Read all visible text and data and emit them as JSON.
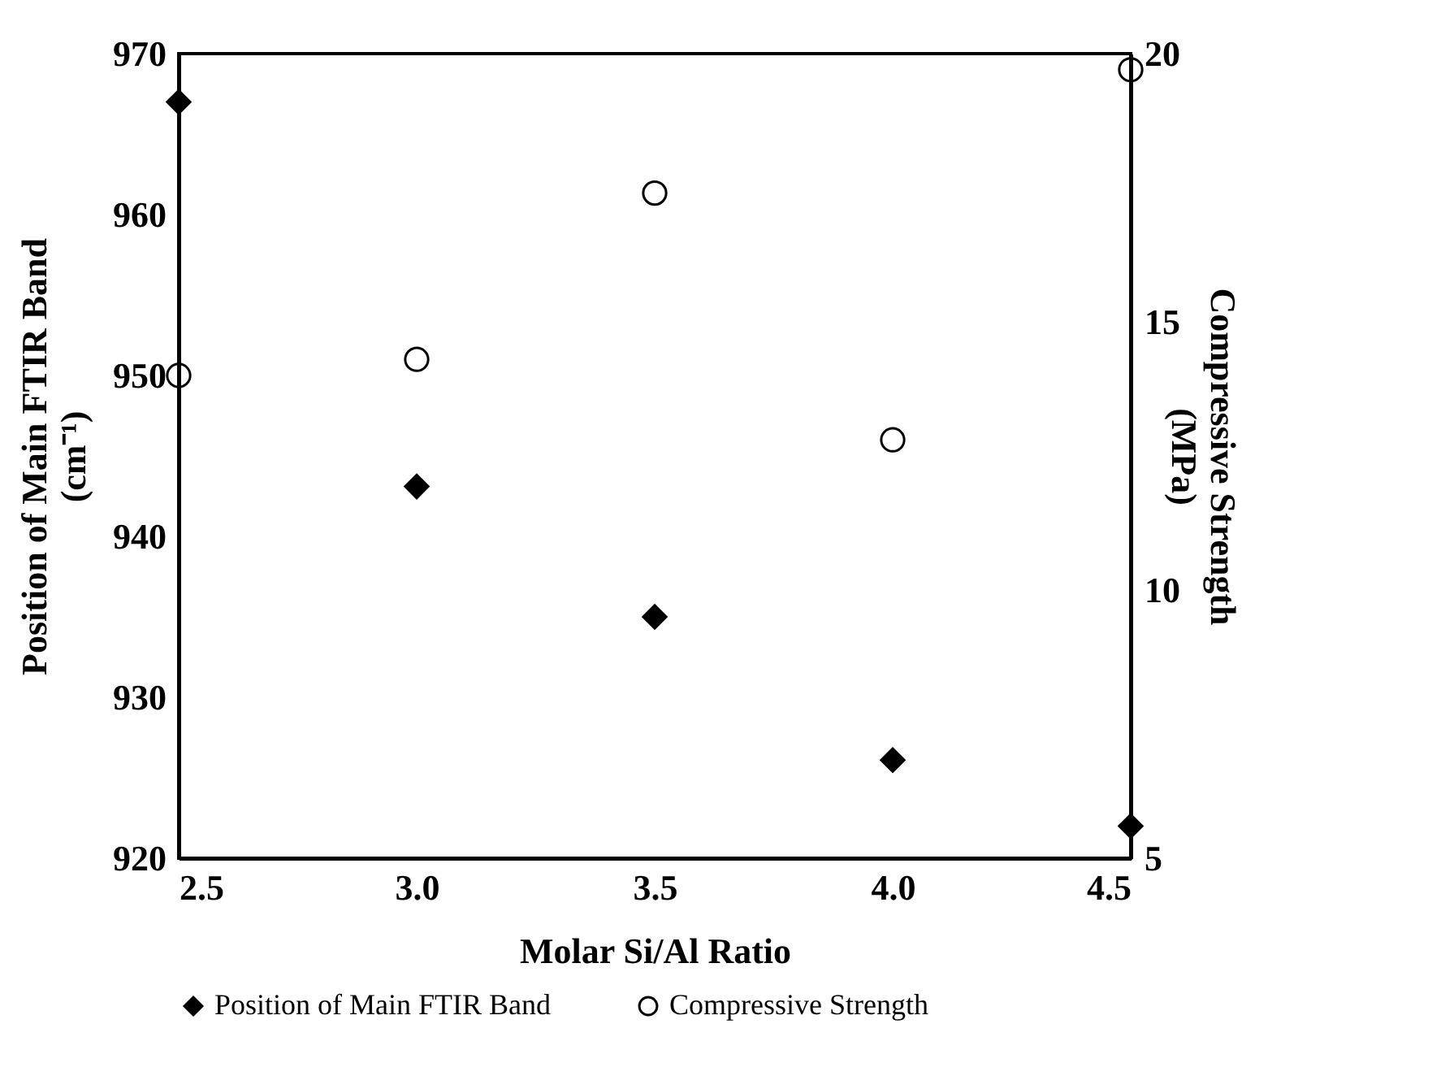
{
  "chart_data": {
    "type": "scatter",
    "xlabel": "Molar Si/Al Ratio",
    "ylabel": "Position of Main FTIR Band\n(cm⁻¹)",
    "y2label": "Compressive Strength\n(MPa)",
    "x": [
      2.5,
      3.0,
      3.5,
      4.0,
      4.5
    ],
    "series": [
      {
        "name": "Position of Main FTIR Band",
        "color": "#000000",
        "marker": "diamond",
        "values": [
          967.0,
          943.1,
          935.0,
          926.1,
          922.0
        ]
      },
      {
        "name": "Compressive Strength",
        "color": "#000000",
        "marker": "circle",
        "axis": "y2",
        "values": [
          14.0,
          14.3,
          17.4,
          12.8,
          19.7
        ]
      }
    ],
    "xlim": [
      2.5,
      4.5
    ],
    "xticks": [
      2.5,
      {
        "value": 3,
        "label": "3.0"
      },
      3.5,
      {
        "value": 4,
        "label": "4.0"
      },
      4.5
    ],
    "ylim": [
      920,
      970
    ],
    "yticks": [
      920,
      930,
      940,
      950,
      960,
      970
    ],
    "y2lim": [
      5,
      20
    ],
    "y2ticks": [
      5,
      10,
      15,
      20
    ],
    "grid": false,
    "legend": "bottom"
  }
}
